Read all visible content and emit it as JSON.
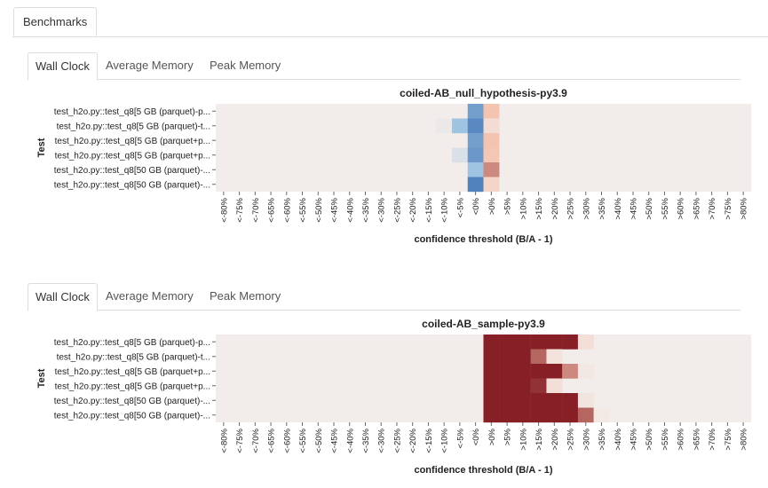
{
  "app": {
    "tab_label": "Benchmarks"
  },
  "panels": [
    {
      "tabs": [
        "Wall Clock",
        "Average Memory",
        "Peak Memory"
      ],
      "active_tab": 0
    },
    {
      "tabs": [
        "Wall Clock",
        "Average Memory",
        "Peak Memory"
      ],
      "active_tab": 0
    }
  ],
  "colors": {
    "background": "#f2ecea",
    "strong_red": "#861f26",
    "strong_blue": "#3c6fb0"
  },
  "chart_data": [
    {
      "type": "heatmap",
      "title": "coiled-AB_null_hypothesis-py3.9",
      "xlabel": "confidence threshold (B/A - 1)",
      "ylabel": "Test",
      "x": [
        "<-80%",
        "<-75%",
        "<-70%",
        "<-65%",
        "<-60%",
        "<-55%",
        "<-50%",
        "<-45%",
        "<-40%",
        "<-35%",
        "<-30%",
        "<-25%",
        "<-20%",
        "<-15%",
        "<-10%",
        "<-5%",
        "<0%",
        ">0%",
        ">5%",
        ">10%",
        ">15%",
        ">20%",
        ">25%",
        ">30%",
        ">35%",
        ">40%",
        ">45%",
        ">50%",
        ">55%",
        ">60%",
        ">65%",
        ">70%",
        ">75%",
        ">80%"
      ],
      "y": [
        "test_h2o.py::test_q8[5 GB (parquet)-p...",
        "test_h2o.py::test_q8[5 GB (parquet)-t...",
        "test_h2o.py::test_q8[5 GB (parquet+p...",
        "test_h2o.py::test_q8[5 GB (parquet+p...",
        "test_h2o.py::test_q8[50 GB (parquet)-...",
        "test_h2o.py::test_q8[50 GB (parquet)-..."
      ],
      "values": [
        [
          0,
          0,
          0,
          0,
          0,
          0,
          0,
          0,
          0,
          0,
          0,
          0,
          0,
          0,
          0,
          0,
          -0.65,
          0.3,
          0,
          0,
          0,
          0,
          0,
          0,
          0,
          0,
          0,
          0,
          0,
          0,
          0,
          0,
          0,
          0
        ],
        [
          0,
          0,
          0,
          0,
          0,
          0,
          0,
          0,
          0,
          0,
          0,
          0,
          0,
          0,
          -0.04,
          -0.4,
          -0.8,
          0.12,
          0,
          0,
          0,
          0,
          0,
          0,
          0,
          0,
          0,
          0,
          0,
          0,
          0,
          0,
          0,
          0
        ],
        [
          0,
          0,
          0,
          0,
          0,
          0,
          0,
          0,
          0,
          0,
          0,
          0,
          0,
          0,
          0,
          0,
          -0.65,
          0.3,
          0,
          0,
          0,
          0,
          0,
          0,
          0,
          0,
          0,
          0,
          0,
          0,
          0,
          0,
          0,
          0
        ],
        [
          0,
          0,
          0,
          0,
          0,
          0,
          0,
          0,
          0,
          0,
          0,
          0,
          0,
          0,
          0,
          -0.12,
          -0.7,
          0.28,
          0,
          0,
          0,
          0,
          0,
          0,
          0,
          0,
          0,
          0,
          0,
          0,
          0,
          0,
          0,
          0
        ],
        [
          0,
          0,
          0,
          0,
          0,
          0,
          0,
          0,
          0,
          0,
          0,
          0,
          0,
          0,
          0,
          0,
          -0.4,
          0.55,
          0,
          0,
          0,
          0,
          0,
          0,
          0,
          0,
          0,
          0,
          0,
          0,
          0,
          0,
          0,
          0
        ],
        [
          0,
          0,
          0,
          0,
          0,
          0,
          0,
          0,
          0,
          0,
          0,
          0,
          0,
          0,
          0,
          0,
          -0.85,
          0.18,
          0,
          0,
          0,
          0,
          0,
          0,
          0,
          0,
          0,
          0,
          0,
          0,
          0,
          0,
          0,
          0
        ]
      ],
      "value_range": [
        -1,
        1
      ]
    },
    {
      "type": "heatmap",
      "title": "coiled-AB_sample-py3.9",
      "xlabel": "confidence threshold (B/A - 1)",
      "ylabel": "Test",
      "x": [
        "<-80%",
        "<-75%",
        "<-70%",
        "<-65%",
        "<-60%",
        "<-55%",
        "<-50%",
        "<-45%",
        "<-40%",
        "<-35%",
        "<-30%",
        "<-25%",
        "<-20%",
        "<-15%",
        "<-10%",
        "<-5%",
        "<0%",
        ">0%",
        ">5%",
        ">10%",
        ">15%",
        ">20%",
        ">25%",
        ">30%",
        ">35%",
        ">40%",
        ">45%",
        ">50%",
        ">55%",
        ">60%",
        ">65%",
        ">70%",
        ">75%",
        ">80%"
      ],
      "y": [
        "test_h2o.py::test_q8[5 GB (parquet)-p...",
        "test_h2o.py::test_q8[5 GB (parquet)-t...",
        "test_h2o.py::test_q8[5 GB (parquet+p...",
        "test_h2o.py::test_q8[5 GB (parquet+p...",
        "test_h2o.py::test_q8[50 GB (parquet)-...",
        "test_h2o.py::test_q8[50 GB (parquet)-..."
      ],
      "values": [
        [
          0,
          0,
          0,
          0,
          0,
          0,
          0,
          0,
          0,
          0,
          0,
          0,
          0,
          0,
          0,
          0,
          0,
          1,
          1,
          1,
          1,
          1,
          1,
          0.1,
          0,
          0,
          0,
          0,
          0,
          0,
          0,
          0,
          0,
          0
        ],
        [
          0,
          0,
          0,
          0,
          0,
          0,
          0,
          0,
          0,
          0,
          0,
          0,
          0,
          0,
          0,
          0,
          0,
          1,
          1,
          1,
          0.7,
          0.08,
          0,
          0,
          0,
          0,
          0,
          0,
          0,
          0,
          0,
          0,
          0,
          0
        ],
        [
          0,
          0,
          0,
          0,
          0,
          0,
          0,
          0,
          0,
          0,
          0,
          0,
          0,
          0,
          0,
          0,
          0,
          1,
          1,
          1,
          1,
          1,
          0.55,
          0.04,
          0,
          0,
          0,
          0,
          0,
          0,
          0,
          0,
          0,
          0
        ],
        [
          0,
          0,
          0,
          0,
          0,
          0,
          0,
          0,
          0,
          0,
          0,
          0,
          0,
          0,
          0,
          0,
          0,
          1,
          1,
          1,
          0.92,
          0.1,
          0,
          0,
          0,
          0,
          0,
          0,
          0,
          0,
          0,
          0,
          0,
          0
        ],
        [
          0,
          0,
          0,
          0,
          0,
          0,
          0,
          0,
          0,
          0,
          0,
          0,
          0,
          0,
          0,
          0,
          0,
          1,
          1,
          1,
          1,
          1,
          1,
          0.05,
          0,
          0,
          0,
          0,
          0,
          0,
          0,
          0,
          0,
          0
        ],
        [
          0,
          0,
          0,
          0,
          0,
          0,
          0,
          0,
          0,
          0,
          0,
          0,
          0,
          0,
          0,
          0,
          0,
          1,
          1,
          1,
          1,
          1,
          1,
          0.7,
          0.03,
          0,
          0,
          0,
          0,
          0,
          0,
          0,
          0,
          0
        ]
      ],
      "value_range": [
        -1,
        1
      ]
    }
  ]
}
